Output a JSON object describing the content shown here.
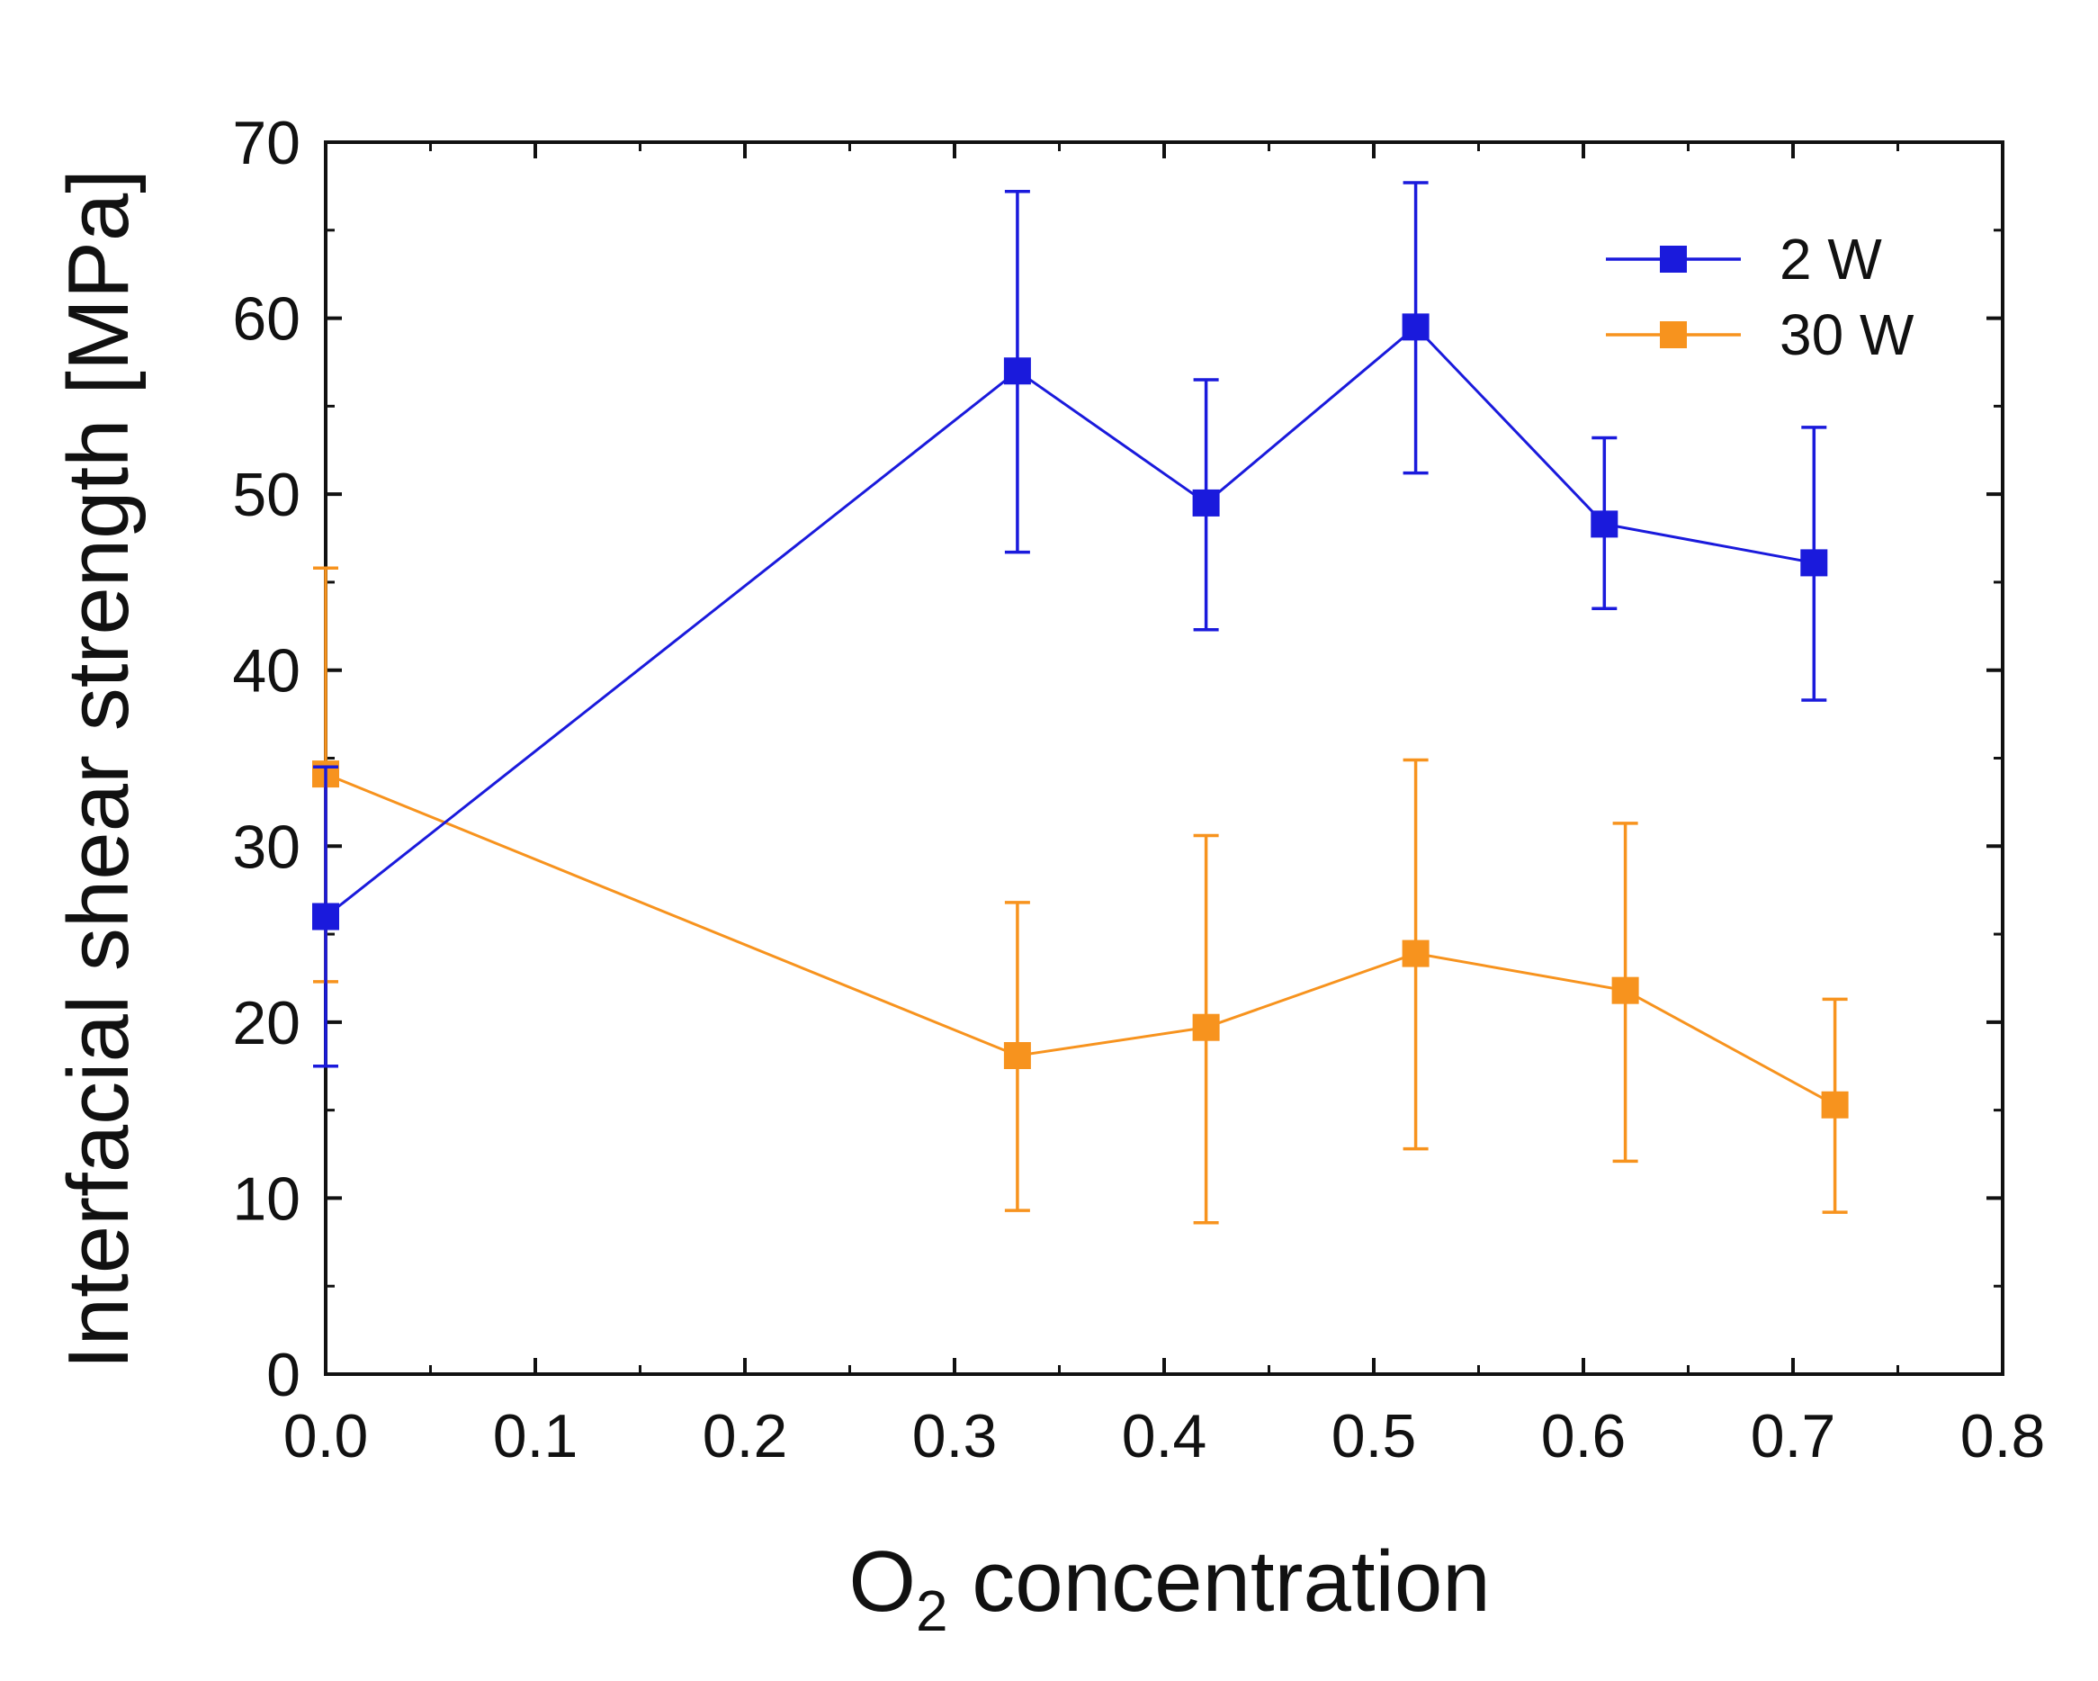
{
  "chart_data": {
    "type": "line",
    "title": "",
    "xlabel_main": "O",
    "xlabel_sub": "2",
    "xlabel_rest": " concentration",
    "ylabel": "Interfacial shear strength [MPa]",
    "xlim": [
      0.0,
      0.8
    ],
    "ylim": [
      0,
      70
    ],
    "x_ticks": [
      "0.0",
      "0.1",
      "0.2",
      "0.3",
      "0.4",
      "0.5",
      "0.6",
      "0.7",
      "0.8"
    ],
    "x_tick_values": [
      0.0,
      0.1,
      0.2,
      0.3,
      0.4,
      0.5,
      0.6,
      0.7,
      0.8
    ],
    "y_ticks": [
      "0",
      "10",
      "20",
      "30",
      "40",
      "50",
      "60",
      "70"
    ],
    "y_tick_values": [
      0,
      10,
      20,
      30,
      40,
      50,
      60,
      70
    ],
    "grid": false,
    "legend_position": "top-right",
    "series": [
      {
        "name": "2 W",
        "color": "#1a1adc",
        "marker": "square",
        "x": [
          0.0,
          0.33,
          0.42,
          0.52,
          0.61,
          0.71
        ],
        "y": [
          26.0,
          57.0,
          49.5,
          59.5,
          48.3,
          46.1
        ],
        "err_low": [
          17.5,
          46.7,
          42.3,
          51.2,
          43.5,
          38.3
        ],
        "err_high": [
          34.5,
          67.2,
          56.5,
          67.7,
          53.2,
          53.8
        ]
      },
      {
        "name": "30 W",
        "color": "#f7931e",
        "marker": "square",
        "x": [
          0.0,
          0.33,
          0.42,
          0.52,
          0.62,
          0.72
        ],
        "y": [
          34.1,
          18.1,
          19.7,
          23.9,
          21.8,
          15.3
        ],
        "err_low": [
          22.3,
          9.3,
          8.6,
          12.8,
          12.1,
          9.2
        ],
        "err_high": [
          45.8,
          26.8,
          30.6,
          34.9,
          31.3,
          21.3
        ]
      }
    ]
  }
}
